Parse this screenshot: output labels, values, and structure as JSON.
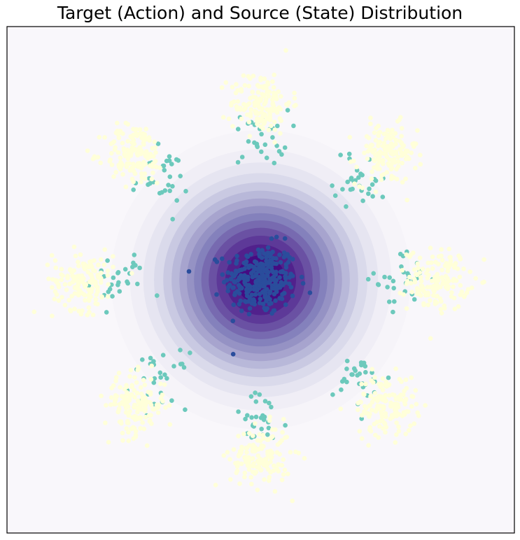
{
  "chart_data": {
    "type": "scatter",
    "title": "Target (Action) and Source (State) Distribution",
    "xlabel": "",
    "ylabel": "",
    "xlim": [
      -4,
      4
    ],
    "ylim": [
      -4,
      4
    ],
    "grid": false,
    "ticks_visible": false,
    "background_contour": {
      "kind": "filled-contour-gaussian",
      "center": [
        0,
        0
      ],
      "sigma": 1.05,
      "levels": 14,
      "colormap": [
        "#f9f7fb",
        "#efedf5",
        "#dadaeb",
        "#bcbddc",
        "#9e9ac8",
        "#807dba",
        "#6a51a3",
        "#54278f",
        "#3f007d"
      ]
    },
    "series": [
      {
        "role": "source",
        "color": "#2a4d9c",
        "center": [
          0,
          0
        ],
        "spread": 0.28,
        "count": 280
      },
      {
        "role": "intermediate",
        "color": "#6cc9bc",
        "count_per_mode": 30,
        "spread": 0.22,
        "centers": [
          [
            2.25,
            0
          ],
          [
            1.59,
            1.59
          ],
          [
            0,
            2.25
          ],
          [
            -1.59,
            1.59
          ],
          [
            -2.25,
            0
          ],
          [
            -1.59,
            -1.59
          ],
          [
            0,
            -2.25
          ],
          [
            1.59,
            -1.59
          ]
        ]
      },
      {
        "role": "target",
        "color": "#ffffd9",
        "count_per_mode": 150,
        "spread": 0.24,
        "centers": [
          [
            2.8,
            0
          ],
          [
            1.98,
            1.98
          ],
          [
            0,
            2.8
          ],
          [
            -1.98,
            1.98
          ],
          [
            -2.8,
            0
          ],
          [
            -1.98,
            -1.98
          ],
          [
            0,
            -2.8
          ],
          [
            1.98,
            -1.98
          ]
        ]
      }
    ]
  }
}
